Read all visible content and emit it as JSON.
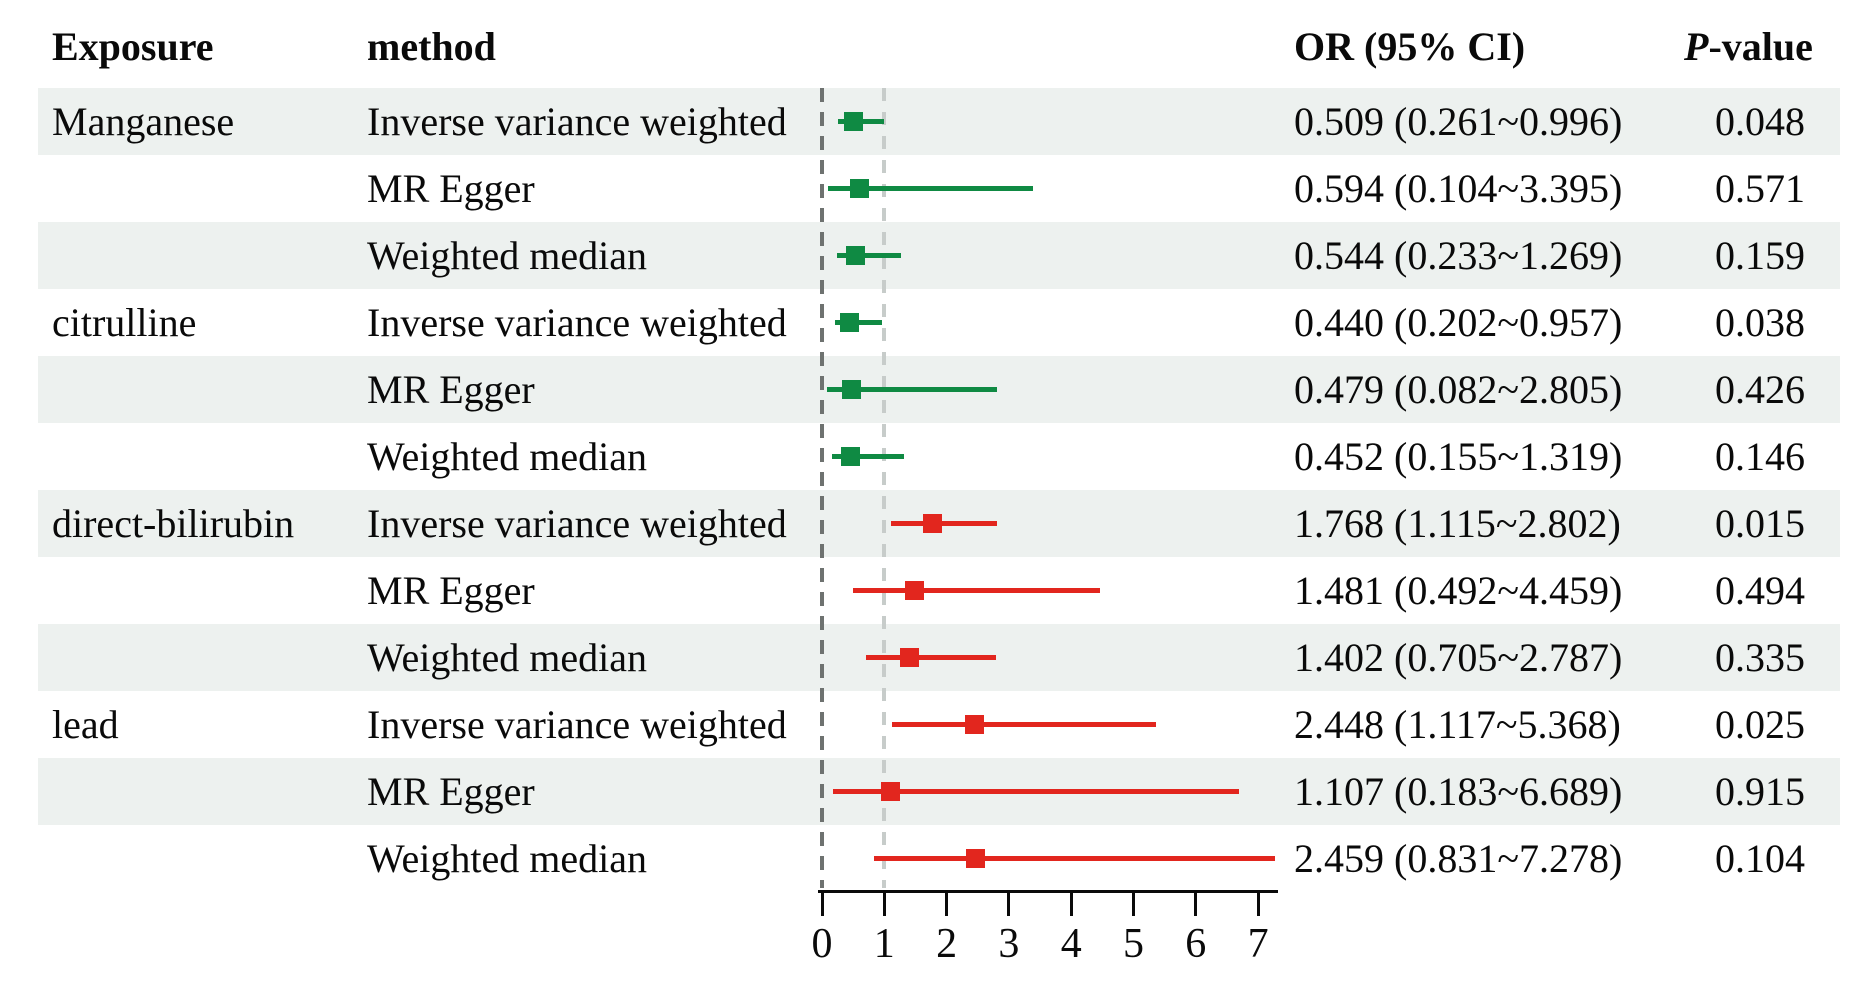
{
  "header": {
    "exposure": "Exposure",
    "method": "method",
    "or_ci": "OR (95% CI)",
    "p_italic": "P",
    "p_rest": "-value"
  },
  "colors": {
    "green": "#0f8a43",
    "red": "#e2261e",
    "band_shaded": "#edf1ef",
    "ref_zero_dash": "#6e7270",
    "ref_one_dash": "#c7ccca",
    "axis": "#0a0a0a"
  },
  "chart_data": {
    "type": "forest",
    "title": "",
    "xlabel": "",
    "x_axis": {
      "ticks": [
        0,
        1,
        2,
        3,
        4,
        5,
        6,
        7
      ],
      "range": [
        0,
        7.3
      ],
      "ref_lines": [
        {
          "value": 0,
          "style": "dark"
        },
        {
          "value": 1,
          "style": "light"
        }
      ]
    },
    "columns": [
      "Exposure",
      "method",
      "OR (95% CI)",
      "P-value"
    ],
    "rows": [
      {
        "exposure": "Manganese",
        "method": "Inverse variance weighted",
        "or": 0.509,
        "lo": 0.261,
        "hi": 0.996,
        "or_ci": "0.509 (0.261~0.996)",
        "p": "0.048",
        "group": "green",
        "shaded": true
      },
      {
        "exposure": "",
        "method": "MR Egger",
        "or": 0.594,
        "lo": 0.104,
        "hi": 3.395,
        "or_ci": "0.594 (0.104~3.395)",
        "p": "0.571",
        "group": "green",
        "shaded": false
      },
      {
        "exposure": "",
        "method": "Weighted median",
        "or": 0.544,
        "lo": 0.233,
        "hi": 1.269,
        "or_ci": "0.544 (0.233~1.269)",
        "p": "0.159",
        "group": "green",
        "shaded": true
      },
      {
        "exposure": "citrulline",
        "method": "Inverse variance weighted",
        "or": 0.44,
        "lo": 0.202,
        "hi": 0.957,
        "or_ci": "0.440 (0.202~0.957)",
        "p": "0.038",
        "group": "green",
        "shaded": false
      },
      {
        "exposure": "",
        "method": "MR Egger",
        "or": 0.479,
        "lo": 0.082,
        "hi": 2.805,
        "or_ci": "0.479 (0.082~2.805)",
        "p": "0.426",
        "group": "green",
        "shaded": true
      },
      {
        "exposure": "",
        "method": "Weighted median",
        "or": 0.452,
        "lo": 0.155,
        "hi": 1.319,
        "or_ci": "0.452 (0.155~1.319)",
        "p": "0.146",
        "group": "green",
        "shaded": false
      },
      {
        "exposure": "direct-bilirubin",
        "method": "Inverse variance weighted",
        "or": 1.768,
        "lo": 1.115,
        "hi": 2.802,
        "or_ci": "1.768 (1.115~2.802)",
        "p": "0.015",
        "group": "red",
        "shaded": true
      },
      {
        "exposure": "",
        "method": "MR Egger",
        "or": 1.481,
        "lo": 0.492,
        "hi": 4.459,
        "or_ci": "1.481 (0.492~4.459)",
        "p": "0.494",
        "group": "red",
        "shaded": false
      },
      {
        "exposure": "",
        "method": "Weighted median",
        "or": 1.402,
        "lo": 0.705,
        "hi": 2.787,
        "or_ci": "1.402 (0.705~2.787)",
        "p": "0.335",
        "group": "red",
        "shaded": true
      },
      {
        "exposure": "lead",
        "method": "Inverse variance weighted",
        "or": 2.448,
        "lo": 1.117,
        "hi": 5.368,
        "or_ci": "2.448 (1.117~5.368)",
        "p": "0.025",
        "group": "red",
        "shaded": false
      },
      {
        "exposure": "",
        "method": "MR Egger",
        "or": 1.107,
        "lo": 0.183,
        "hi": 6.689,
        "or_ci": "1.107 (0.183~6.689)",
        "p": "0.915",
        "group": "red",
        "shaded": true
      },
      {
        "exposure": "",
        "method": "Weighted median",
        "or": 2.459,
        "lo": 0.831,
        "hi": 7.278,
        "or_ci": "2.459 (0.831~7.278)",
        "p": "0.104",
        "group": "red",
        "shaded": false
      }
    ]
  }
}
